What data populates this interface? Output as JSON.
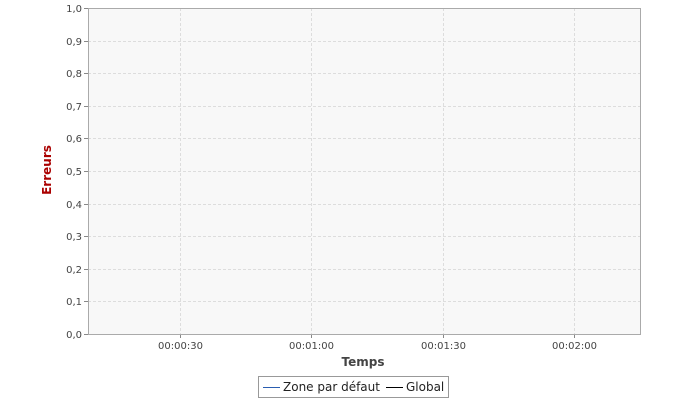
{
  "chart_data": {
    "type": "line",
    "title": "",
    "xlabel": "Temps",
    "ylabel": "Erreurs",
    "x_ticks": [
      "00:00:30",
      "00:01:00",
      "00:01:30",
      "00:02:00"
    ],
    "y_ticks": [
      "0,0",
      "0,1",
      "0,2",
      "0,3",
      "0,4",
      "0,5",
      "0,6",
      "0,7",
      "0,8",
      "0,9",
      "1,0"
    ],
    "ylim": [
      0,
      1
    ],
    "grid": true,
    "legend_position": "bottom",
    "series": [
      {
        "name": "Zone par défaut",
        "color": "#2a5db0",
        "values": []
      },
      {
        "name": "Global",
        "color": "#000000",
        "values": []
      }
    ]
  },
  "colors": {
    "plot_background": "#f8f8f8",
    "gridline": "#dddddd",
    "ylabel_color": "#aa0000",
    "xlabel_color": "#444444"
  }
}
